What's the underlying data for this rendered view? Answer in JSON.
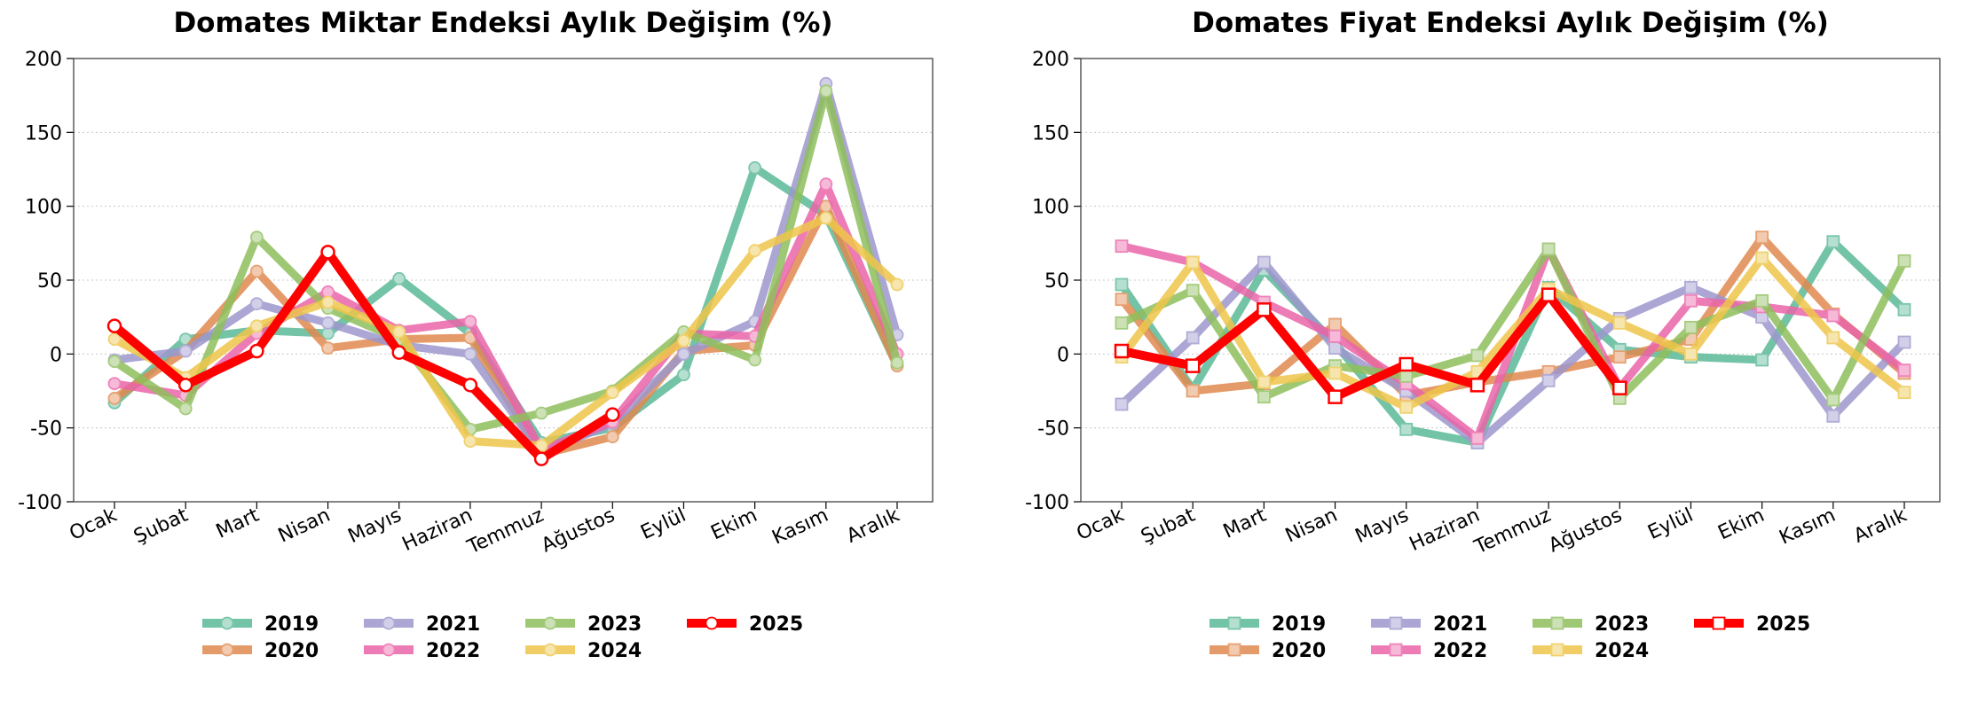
{
  "chart_data": [
    {
      "type": "line",
      "title": "Domates Miktar Endeksi Aylık Değişim (%)",
      "xlabel": "",
      "ylabel": "",
      "categories": [
        "Ocak",
        "Şubat",
        "Mart",
        "Nisan",
        "Mayıs",
        "Haziran",
        "Temmuz",
        "Ağustos",
        "Eylül",
        "Ekim",
        "Kasım",
        "Aralık"
      ],
      "ylim": [
        -100,
        200
      ],
      "yticks": [
        -100,
        -50,
        0,
        50,
        100,
        150,
        200
      ],
      "grid": "y-dotted",
      "marker": "circle",
      "legend_position": "bottom",
      "series": [
        {
          "name": "2019",
          "color": "#5ab896",
          "values": [
            -33,
            10,
            16,
            14,
            51,
            14,
            -60,
            -50,
            -14,
            126,
            94,
            -8
          ]
        },
        {
          "name": "2020",
          "color": "#e08a4f",
          "values": [
            -30,
            2,
            56,
            4,
            10,
            11,
            -68,
            -56,
            2,
            6,
            100,
            -8
          ]
        },
        {
          "name": "2021",
          "color": "#9c96cc",
          "values": [
            -4,
            2,
            34,
            21,
            6,
            0,
            -67,
            -47,
            0,
            22,
            183,
            13
          ]
        },
        {
          "name": "2022",
          "color": "#ea64a8",
          "values": [
            -20,
            -28,
            14,
            42,
            16,
            22,
            -65,
            -46,
            14,
            12,
            115,
            0
          ]
        },
        {
          "name": "2023",
          "color": "#8ebe5c",
          "values": [
            -5,
            -37,
            79,
            31,
            10,
            -51,
            -40,
            -25,
            15,
            -4,
            178,
            -6
          ]
        },
        {
          "name": "2024",
          "color": "#eec54a",
          "values": [
            10,
            -16,
            19,
            35,
            15,
            -59,
            -62,
            -26,
            9,
            70,
            92,
            47
          ]
        },
        {
          "name": "2025",
          "color": "#ff0000",
          "values": [
            19,
            -21,
            2,
            69,
            1,
            -21,
            -71,
            -41,
            null,
            null,
            null,
            null
          ]
        }
      ]
    },
    {
      "type": "line",
      "title": "Domates Fiyat Endeksi Aylık Değişim (%)",
      "xlabel": "",
      "ylabel": "",
      "categories": [
        "Ocak",
        "Şubat",
        "Mart",
        "Nisan",
        "Mayıs",
        "Haziran",
        "Temmuz",
        "Ağustos",
        "Eylül",
        "Ekim",
        "Kasım",
        "Aralık"
      ],
      "ylim": [
        -100,
        200
      ],
      "yticks": [
        -100,
        -50,
        0,
        50,
        100,
        150,
        200
      ],
      "grid": "y-dotted",
      "marker": "square",
      "legend_position": "bottom",
      "series": [
        {
          "name": "2019",
          "color": "#5ab896",
          "values": [
            47,
            -24,
            57,
            7,
            -51,
            -60,
            45,
            3,
            -2,
            -4,
            76,
            30
          ]
        },
        {
          "name": "2020",
          "color": "#e08a4f",
          "values": [
            37,
            -25,
            -20,
            20,
            -28,
            -19,
            -12,
            -2,
            10,
            79,
            27,
            -13
          ]
        },
        {
          "name": "2021",
          "color": "#9c96cc",
          "values": [
            -34,
            11,
            62,
            4,
            -25,
            -60,
            -18,
            24,
            45,
            25,
            -42,
            8
          ]
        },
        {
          "name": "2022",
          "color": "#ea64a8",
          "values": [
            73,
            62,
            35,
            12,
            -20,
            -57,
            71,
            -23,
            36,
            32,
            26,
            -11
          ]
        },
        {
          "name": "2023",
          "color": "#8ebe5c",
          "values": [
            21,
            43,
            -29,
            -8,
            -15,
            -1,
            71,
            -30,
            18,
            36,
            -31,
            63
          ]
        },
        {
          "name": "2024",
          "color": "#eec54a",
          "values": [
            -2,
            62,
            -19,
            -13,
            -36,
            -12,
            44,
            21,
            0,
            65,
            11,
            -26
          ]
        },
        {
          "name": "2025",
          "color": "#ff0000",
          "values": [
            2,
            -8,
            30,
            -29,
            -7,
            -21,
            40,
            -23,
            null,
            null,
            null,
            null
          ]
        }
      ]
    }
  ]
}
